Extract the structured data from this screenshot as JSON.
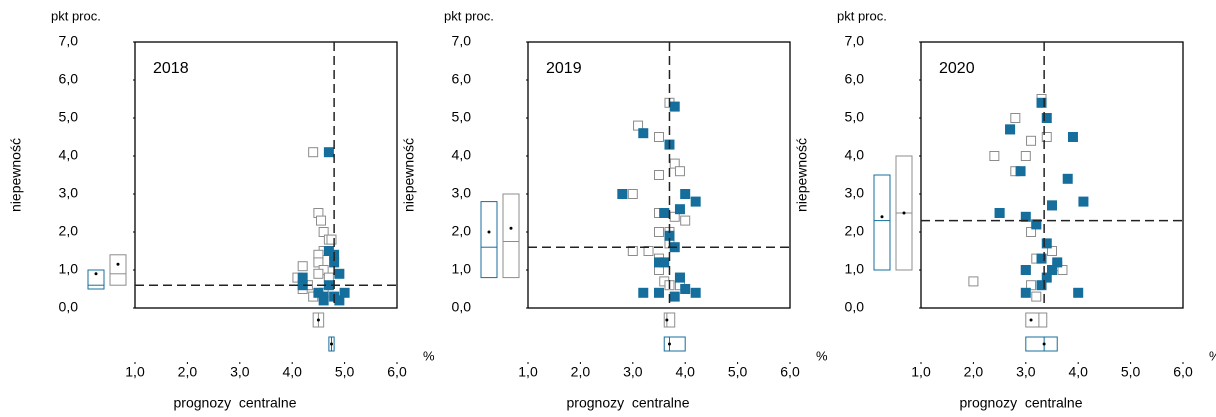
{
  "chart_data": [
    {
      "type": "scatter",
      "title": "2018",
      "ylabel": "niepewność",
      "yunit": "pkt proc.",
      "xlabel": "prognozy  centralne",
      "xunit": "%",
      "xlim": [
        1,
        6
      ],
      "ylim": [
        0,
        7
      ],
      "xticks": [
        {
          "value": 1,
          "label": "1,0"
        },
        {
          "value": 2,
          "label": "2,0"
        },
        {
          "value": 3,
          "label": "3,0"
        },
        {
          "value": 4,
          "label": "4,0"
        },
        {
          "value": 5,
          "label": "5,0"
        },
        {
          "value": 6,
          "label": "6,0"
        }
      ],
      "yticks": [
        {
          "value": 0,
          "label": "0,0"
        },
        {
          "value": 1,
          "label": "1,0"
        },
        {
          "value": 2,
          "label": "2,0"
        },
        {
          "value": 3,
          "label": "3,0"
        },
        {
          "value": 4,
          "label": "4,0"
        },
        {
          "value": 5,
          "label": "5,0"
        },
        {
          "value": 6,
          "label": "6,0"
        },
        {
          "value": 7,
          "label": "7,0"
        }
      ],
      "vline": 4.8,
      "hline": 0.6,
      "series": [
        {
          "color": "#8c8c8c",
          "filled": false,
          "x": [
            4.4,
            4.5,
            4.55,
            4.6,
            4.7,
            4.75,
            4.6,
            4.5,
            4.5,
            4.6,
            4.5,
            4.2,
            4.1,
            4.3,
            4.2,
            4.4,
            4.6,
            4.7
          ],
          "values": [
            4.1,
            2.5,
            2.3,
            2.0,
            1.8,
            1.8,
            1.5,
            1.4,
            1.2,
            1.0,
            0.9,
            1.1,
            0.8,
            0.6,
            0.5,
            0.3,
            0.4,
            0.8
          ]
        },
        {
          "color": "#156e9c",
          "filled": true,
          "x": [
            4.7,
            4.7,
            4.8,
            4.8,
            4.9,
            4.2,
            4.2,
            4.7,
            4.6,
            4.8,
            4.9,
            5.0,
            4.5,
            4.6
          ],
          "values": [
            4.1,
            1.5,
            1.4,
            1.2,
            0.9,
            0.8,
            0.6,
            0.6,
            0.3,
            0.3,
            0.2,
            0.4,
            0.4,
            0.2
          ]
        }
      ],
      "boxes": [
        {
          "axis": "y",
          "color": "#156e9c",
          "low": 0.5,
          "median": 0.6,
          "high": 1.0,
          "mean": 0.9
        },
        {
          "axis": "y",
          "color": "#8c8c8c",
          "low": 0.6,
          "median": 0.9,
          "high": 1.4,
          "mean": 1.15
        },
        {
          "axis": "x",
          "color": "#8c8c8c",
          "low": 4.4,
          "median": 4.5,
          "high": 4.6,
          "mean": 4.5
        },
        {
          "axis": "x",
          "color": "#156e9c",
          "low": 4.7,
          "median": 4.75,
          "high": 4.8,
          "mean": 4.75
        }
      ]
    },
    {
      "type": "scatter",
      "title": "2019",
      "ylabel": "niepewność",
      "yunit": "pkt proc.",
      "xlabel": "prognozy  centralne",
      "xunit": "%",
      "xlim": [
        1,
        6
      ],
      "ylim": [
        0,
        7
      ],
      "xticks": [
        {
          "value": 1,
          "label": "1,0"
        },
        {
          "value": 2,
          "label": "2,0"
        },
        {
          "value": 3,
          "label": "3,0"
        },
        {
          "value": 4,
          "label": "4,0"
        },
        {
          "value": 5,
          "label": "5,0"
        },
        {
          "value": 6,
          "label": "6,0"
        }
      ],
      "yticks": [
        {
          "value": 0,
          "label": "0,0"
        },
        {
          "value": 1,
          "label": "1,0"
        },
        {
          "value": 2,
          "label": "2,0"
        },
        {
          "value": 3,
          "label": "3,0"
        },
        {
          "value": 4,
          "label": "4,0"
        },
        {
          "value": 5,
          "label": "5,0"
        },
        {
          "value": 6,
          "label": "6,0"
        },
        {
          "value": 7,
          "label": "7,0"
        }
      ],
      "vline": 3.7,
      "hline": 1.6,
      "series": [
        {
          "color": "#8c8c8c",
          "filled": false,
          "x": [
            3.7,
            3.1,
            3.5,
            3.8,
            3.9,
            3.5,
            3.0,
            3.5,
            3.6,
            3.8,
            4.0,
            3.5,
            3.7,
            3.7,
            3.0,
            3.3,
            3.5,
            3.5,
            3.9,
            3.6,
            3.7,
            3.9
          ],
          "values": [
            5.4,
            4.8,
            4.5,
            3.8,
            3.6,
            3.5,
            3.0,
            2.5,
            2.5,
            2.4,
            2.3,
            2.0,
            2.0,
            1.7,
            1.5,
            1.5,
            1.3,
            1.0,
            0.8,
            0.7,
            0.6,
            0.6
          ]
        },
        {
          "color": "#156e9c",
          "filled": true,
          "x": [
            3.8,
            3.2,
            3.7,
            2.8,
            4.0,
            4.2,
            3.9,
            3.6,
            3.7,
            3.8,
            3.5,
            3.6,
            3.9,
            4.0,
            3.2,
            3.5,
            4.2,
            3.8
          ],
          "values": [
            5.3,
            4.6,
            4.3,
            3.0,
            3.0,
            2.8,
            2.6,
            2.5,
            1.9,
            1.6,
            1.2,
            1.2,
            0.8,
            0.5,
            0.4,
            0.4,
            0.4,
            0.3
          ]
        }
      ],
      "boxes": [
        {
          "axis": "y",
          "color": "#156e9c",
          "low": 0.8,
          "median": 1.6,
          "high": 2.8,
          "mean": 2.0
        },
        {
          "axis": "y",
          "color": "#8c8c8c",
          "low": 0.8,
          "median": 1.75,
          "high": 3.0,
          "mean": 2.1
        },
        {
          "axis": "x",
          "color": "#8c8c8c",
          "low": 3.6,
          "median": 3.65,
          "high": 3.8,
          "mean": 3.65
        },
        {
          "axis": "x",
          "color": "#156e9c",
          "low": 3.6,
          "median": 3.7,
          "high": 4.0,
          "mean": 3.7
        }
      ]
    },
    {
      "type": "scatter",
      "title": "2020",
      "ylabel": "niepewność",
      "yunit": "pkt proc.",
      "xlabel": "prognozy  centralne",
      "xunit": "%",
      "xlim": [
        1,
        6
      ],
      "ylim": [
        0,
        7
      ],
      "xticks": [
        {
          "value": 1,
          "label": "1,0"
        },
        {
          "value": 2,
          "label": "2,0"
        },
        {
          "value": 3,
          "label": "3,0"
        },
        {
          "value": 4,
          "label": "4,0"
        },
        {
          "value": 5,
          "label": "5,0"
        },
        {
          "value": 6,
          "label": "6,0"
        }
      ],
      "yticks": [
        {
          "value": 0,
          "label": "0,0"
        },
        {
          "value": 1,
          "label": "1,0"
        },
        {
          "value": 2,
          "label": "2,0"
        },
        {
          "value": 3,
          "label": "3,0"
        },
        {
          "value": 4,
          "label": "4,0"
        },
        {
          "value": 5,
          "label": "5,0"
        },
        {
          "value": 6,
          "label": "6,0"
        },
        {
          "value": 7,
          "label": "7,0"
        }
      ],
      "vline": 3.35,
      "hline": 2.3,
      "series": [
        {
          "color": "#8c8c8c",
          "filled": false,
          "x": [
            3.3,
            2.8,
            2.7,
            3.4,
            3.1,
            2.4,
            3.0,
            2.8,
            3.5,
            2.5,
            3.2,
            3.1,
            3.5,
            3.2,
            3.6,
            3.7,
            3.0,
            2.0,
            3.1,
            3.2
          ],
          "values": [
            5.5,
            5.0,
            4.7,
            4.5,
            4.4,
            4.0,
            4.0,
            3.6,
            2.7,
            2.5,
            2.2,
            2.0,
            1.5,
            1.3,
            1.1,
            1.0,
            1.0,
            0.7,
            0.6,
            0.3
          ]
        },
        {
          "color": "#156e9c",
          "filled": true,
          "x": [
            3.3,
            3.4,
            2.7,
            3.9,
            2.9,
            3.8,
            4.1,
            3.5,
            2.5,
            3.0,
            3.2,
            3.4,
            3.6,
            3.5,
            3.0,
            3.3,
            3.4,
            3.3,
            3.0,
            4.0
          ],
          "values": [
            5.4,
            5.0,
            4.7,
            4.5,
            3.6,
            3.4,
            2.8,
            2.7,
            2.5,
            2.4,
            2.2,
            1.7,
            1.2,
            1.0,
            1.0,
            1.3,
            0.8,
            0.6,
            0.4,
            0.4
          ]
        }
      ],
      "boxes": [
        {
          "axis": "y",
          "color": "#156e9c",
          "low": 1.0,
          "median": 2.3,
          "high": 3.5,
          "mean": 2.4
        },
        {
          "axis": "y",
          "color": "#8c8c8c",
          "low": 1.0,
          "median": 2.5,
          "high": 4.0,
          "mean": 2.5
        },
        {
          "axis": "x",
          "color": "#8c8c8c",
          "low": 3.0,
          "median": 3.25,
          "high": 3.4,
          "mean": 3.1
        },
        {
          "axis": "x",
          "color": "#156e9c",
          "low": 3.0,
          "median": 3.35,
          "high": 3.6,
          "mean": 3.35
        }
      ]
    }
  ]
}
